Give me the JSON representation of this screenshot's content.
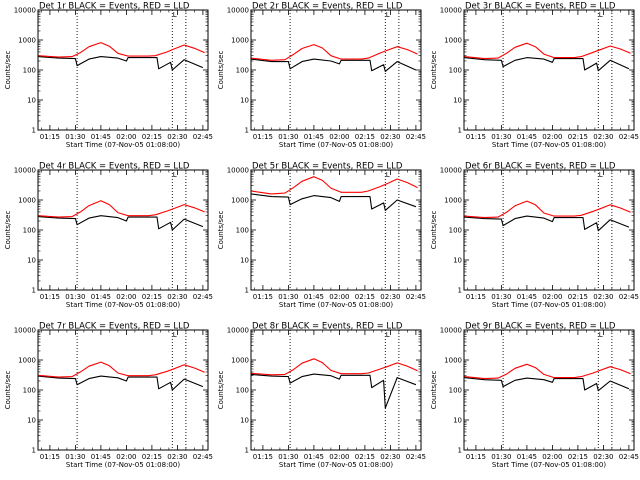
{
  "colors": {
    "events": "#000000",
    "lld": "#ff0000",
    "background": "#ffffff",
    "axes": "#000000"
  },
  "chart_data": [
    {
      "type": "line",
      "title": "Det 1r BLACK = Events, RED = LLD",
      "xlabel": "Start Time (07-Nov-05 01:08:00)",
      "ylabel": "Counts/sec",
      "yscale": "log",
      "ylim": [
        1,
        10000
      ],
      "xlim": [
        "01:08",
        "02:48"
      ],
      "xticklabels": [
        "01:15",
        "01:30",
        "01:45",
        "02:00",
        "02:15",
        "02:30",
        "02:45"
      ],
      "yticklabels": [
        "1",
        "10",
        "100",
        "1000",
        "10000"
      ],
      "vlines": [
        "01:31",
        "02:27",
        "02:35"
      ],
      "annotation": "L",
      "series": [
        {
          "name": "LLD",
          "x": [
            "01:08",
            "01:20",
            "01:28",
            "01:33",
            "01:38",
            "01:45",
            "01:50",
            "01:55",
            "02:01",
            "02:13",
            "02:17",
            "02:24",
            "02:28",
            "02:34",
            "02:40",
            "02:46"
          ],
          "y": [
            300,
            270,
            280,
            380,
            600,
            820,
            620,
            360,
            290,
            290,
            300,
            400,
            500,
            680,
            530,
            380
          ]
        },
        {
          "name": "Events",
          "x": [
            "01:08",
            "01:20",
            "01:30",
            "01:31",
            "01:38",
            "01:45",
            "01:55",
            "02:00",
            "02:01",
            "02:18",
            "02:19",
            "02:26",
            "02:27",
            "02:34",
            "02:45"
          ],
          "y": [
            280,
            250,
            240,
            140,
            230,
            280,
            250,
            200,
            260,
            260,
            110,
            180,
            100,
            220,
            120
          ]
        }
      ]
    },
    {
      "type": "line",
      "title": "Det 2r BLACK = Events, RED = LLD",
      "xlabel": "Start Time (07-Nov-05 01:08:00)",
      "ylabel": "Counts/sec",
      "yscale": "log",
      "ylim": [
        1,
        10000
      ],
      "xlim": [
        "01:08",
        "02:48"
      ],
      "xticklabels": [
        "01:15",
        "01:30",
        "01:45",
        "02:00",
        "02:15",
        "02:30",
        "02:45"
      ],
      "yticklabels": [
        "1",
        "10",
        "100",
        "1000",
        "10000"
      ],
      "vlines": [
        "01:31",
        "02:27",
        "02:35"
      ],
      "annotation": "L",
      "series": [
        {
          "name": "LLD",
          "x": [
            "01:08",
            "01:20",
            "01:28",
            "01:33",
            "01:38",
            "01:45",
            "01:50",
            "01:55",
            "02:01",
            "02:13",
            "02:17",
            "02:24",
            "02:28",
            "02:34",
            "02:40",
            "02:46"
          ],
          "y": [
            250,
            210,
            220,
            330,
            520,
            700,
            540,
            300,
            230,
            230,
            250,
            370,
            450,
            600,
            480,
            340
          ]
        },
        {
          "name": "Events",
          "x": [
            "01:08",
            "01:20",
            "01:30",
            "01:31",
            "01:38",
            "01:45",
            "01:55",
            "02:00",
            "02:01",
            "02:18",
            "02:19",
            "02:26",
            "02:27",
            "02:34",
            "02:45"
          ],
          "y": [
            230,
            190,
            190,
            110,
            190,
            230,
            200,
            160,
            210,
            210,
            95,
            150,
            90,
            190,
            100
          ]
        }
      ]
    },
    {
      "type": "line",
      "title": "Det 3r BLACK = Events, RED = LLD",
      "xlabel": "Start Time (07-Nov-05 01:08:00)",
      "ylabel": "Counts/sec",
      "yscale": "log",
      "ylim": [
        1,
        10000
      ],
      "xlim": [
        "01:08",
        "02:48"
      ],
      "xticklabels": [
        "01:15",
        "01:30",
        "01:45",
        "02:00",
        "02:15",
        "02:30",
        "02:45"
      ],
      "yticklabels": [
        "1",
        "10",
        "100",
        "1000",
        "10000"
      ],
      "vlines": [
        "01:31",
        "02:27",
        "02:35"
      ],
      "annotation": "L",
      "series": [
        {
          "name": "LLD",
          "x": [
            "01:08",
            "01:20",
            "01:28",
            "01:33",
            "01:38",
            "01:45",
            "01:50",
            "01:55",
            "02:01",
            "02:13",
            "02:17",
            "02:24",
            "02:28",
            "02:34",
            "02:40",
            "02:46"
          ],
          "y": [
            280,
            240,
            250,
            360,
            570,
            780,
            600,
            340,
            260,
            260,
            280,
            390,
            470,
            630,
            500,
            360
          ]
        },
        {
          "name": "Events",
          "x": [
            "01:08",
            "01:20",
            "01:30",
            "01:31",
            "01:38",
            "01:45",
            "01:55",
            "02:00",
            "02:01",
            "02:18",
            "02:19",
            "02:26",
            "02:27",
            "02:34",
            "02:45"
          ],
          "y": [
            260,
            220,
            210,
            130,
            210,
            260,
            230,
            180,
            240,
            240,
            100,
            170,
            95,
            210,
            110
          ]
        }
      ]
    },
    {
      "type": "line",
      "title": "Det 4r BLACK = Events, RED = LLD",
      "xlabel": "Start Time (07-Nov-05 01:08:00)",
      "ylabel": "Counts/sec",
      "yscale": "log",
      "ylim": [
        1,
        10000
      ],
      "xlim": [
        "01:08",
        "02:48"
      ],
      "xticklabels": [
        "01:15",
        "01:30",
        "01:45",
        "02:00",
        "02:15",
        "02:30",
        "02:45"
      ],
      "yticklabels": [
        "1",
        "10",
        "100",
        "1000",
        "10000"
      ],
      "vlines": [
        "01:31",
        "02:27",
        "02:35"
      ],
      "annotation": "L",
      "series": [
        {
          "name": "LLD",
          "x": [
            "01:08",
            "01:20",
            "01:28",
            "01:33",
            "01:38",
            "01:45",
            "01:50",
            "01:55",
            "02:01",
            "02:13",
            "02:17",
            "02:24",
            "02:28",
            "02:34",
            "02:40",
            "02:46"
          ],
          "y": [
            300,
            270,
            280,
            400,
            650,
            950,
            700,
            380,
            300,
            300,
            320,
            430,
            520,
            700,
            550,
            400
          ]
        },
        {
          "name": "Events",
          "x": [
            "01:08",
            "01:20",
            "01:30",
            "01:31",
            "01:38",
            "01:45",
            "01:55",
            "02:00",
            "02:01",
            "02:18",
            "02:19",
            "02:26",
            "02:27",
            "02:34",
            "02:45"
          ],
          "y": [
            280,
            250,
            240,
            150,
            250,
            300,
            260,
            200,
            270,
            270,
            110,
            180,
            100,
            230,
            130
          ]
        }
      ]
    },
    {
      "type": "line",
      "title": "Det 5r BLACK = Events, RED = LLD",
      "xlabel": "Start Time (07-Nov-05 01:08:00)",
      "ylabel": "Counts/sec",
      "yscale": "log",
      "ylim": [
        1,
        10000
      ],
      "xlim": [
        "01:08",
        "02:48"
      ],
      "xticklabels": [
        "01:15",
        "01:30",
        "01:45",
        "02:00",
        "02:15",
        "02:30",
        "02:45"
      ],
      "yticklabels": [
        "1",
        "10",
        "100",
        "1000",
        "10000"
      ],
      "vlines": [
        "01:31",
        "02:27",
        "02:35"
      ],
      "annotation": "L",
      "series": [
        {
          "name": "LLD",
          "x": [
            "01:08",
            "01:20",
            "01:28",
            "01:33",
            "01:38",
            "01:45",
            "01:50",
            "01:55",
            "02:01",
            "02:13",
            "02:17",
            "02:24",
            "02:28",
            "02:34",
            "02:40",
            "02:46"
          ],
          "y": [
            2000,
            1600,
            1700,
            2600,
            4200,
            6000,
            4500,
            2500,
            1800,
            1800,
            2000,
            2800,
            3500,
            5000,
            3800,
            2600
          ]
        },
        {
          "name": "Events",
          "x": [
            "01:08",
            "01:20",
            "01:30",
            "01:31",
            "01:38",
            "01:45",
            "01:55",
            "02:00",
            "02:01",
            "02:18",
            "02:19",
            "02:26",
            "02:27",
            "02:34",
            "02:45"
          ],
          "y": [
            1600,
            1300,
            1250,
            700,
            1100,
            1400,
            1200,
            900,
            1300,
            1300,
            500,
            800,
            450,
            1000,
            600
          ]
        }
      ]
    },
    {
      "type": "line",
      "title": "Det 6r BLACK = Events, RED = LLD",
      "xlabel": "Start Time (07-Nov-05 01:08:00)",
      "ylabel": "Counts/sec",
      "yscale": "log",
      "ylim": [
        1,
        10000
      ],
      "xlim": [
        "01:08",
        "02:48"
      ],
      "xticklabels": [
        "01:15",
        "01:30",
        "01:45",
        "02:00",
        "02:15",
        "02:30",
        "02:45"
      ],
      "yticklabels": [
        "1",
        "10",
        "100",
        "1000",
        "10000"
      ],
      "vlines": [
        "01:31",
        "02:27",
        "02:35"
      ],
      "annotation": "L",
      "series": [
        {
          "name": "LLD",
          "x": [
            "01:08",
            "01:20",
            "01:28",
            "01:33",
            "01:38",
            "01:45",
            "01:50",
            "01:55",
            "02:01",
            "02:13",
            "02:17",
            "02:24",
            "02:28",
            "02:34",
            "02:40",
            "02:46"
          ],
          "y": [
            290,
            260,
            270,
            390,
            640,
            920,
            690,
            370,
            290,
            290,
            310,
            420,
            510,
            690,
            540,
            390
          ]
        },
        {
          "name": "Events",
          "x": [
            "01:08",
            "01:20",
            "01:30",
            "01:31",
            "01:38",
            "01:45",
            "01:55",
            "02:00",
            "02:01",
            "02:18",
            "02:19",
            "02:26",
            "02:27",
            "02:34",
            "02:45"
          ],
          "y": [
            270,
            240,
            230,
            140,
            240,
            290,
            250,
            190,
            260,
            260,
            105,
            175,
            95,
            220,
            125
          ]
        }
      ]
    },
    {
      "type": "line",
      "title": "Det 7r BLACK = Events, RED = LLD",
      "xlabel": "Start Time (07-Nov-05 01:08:00)",
      "ylabel": "Counts/sec",
      "yscale": "log",
      "ylim": [
        1,
        10000
      ],
      "xlim": [
        "01:08",
        "02:48"
      ],
      "xticklabels": [
        "01:15",
        "01:30",
        "01:45",
        "02:00",
        "02:15",
        "02:30",
        "02:45"
      ],
      "yticklabels": [
        "1",
        "10",
        "100",
        "1000",
        "10000"
      ],
      "vlines": [
        "01:31",
        "02:27",
        "02:35"
      ],
      "annotation": "L",
      "series": [
        {
          "name": "LLD",
          "x": [
            "01:08",
            "01:20",
            "01:28",
            "01:33",
            "01:38",
            "01:45",
            "01:50",
            "01:55",
            "02:01",
            "02:13",
            "02:17",
            "02:24",
            "02:28",
            "02:34",
            "02:40",
            "02:46"
          ],
          "y": [
            310,
            270,
            280,
            400,
            620,
            850,
            640,
            370,
            300,
            300,
            320,
            420,
            510,
            690,
            540,
            390
          ]
        },
        {
          "name": "Events",
          "x": [
            "01:08",
            "01:20",
            "01:30",
            "01:31",
            "01:38",
            "01:45",
            "01:55",
            "02:00",
            "02:01",
            "02:18",
            "02:19",
            "02:26",
            "02:27",
            "02:34",
            "02:45"
          ],
          "y": [
            290,
            250,
            240,
            150,
            240,
            290,
            255,
            200,
            270,
            270,
            110,
            180,
            100,
            230,
            130
          ]
        }
      ]
    },
    {
      "type": "line",
      "title": "Det 8r BLACK = Events, RED = LLD",
      "xlabel": "Start Time (07-Nov-05 01:08:00)",
      "ylabel": "Counts/sec",
      "yscale": "log",
      "ylim": [
        1,
        10000
      ],
      "xlim": [
        "01:08",
        "02:48"
      ],
      "xticklabels": [
        "01:15",
        "01:30",
        "01:45",
        "02:00",
        "02:15",
        "02:30",
        "02:45"
      ],
      "yticklabels": [
        "1",
        "10",
        "100",
        "1000",
        "10000"
      ],
      "vlines": [
        "01:31",
        "02:27",
        "02:35"
      ],
      "annotation": "L",
      "series": [
        {
          "name": "LLD",
          "x": [
            "01:08",
            "01:20",
            "01:28",
            "01:33",
            "01:38",
            "01:45",
            "01:50",
            "01:55",
            "02:01",
            "02:13",
            "02:17",
            "02:24",
            "02:28",
            "02:34",
            "02:40",
            "02:46"
          ],
          "y": [
            360,
            320,
            330,
            480,
            780,
            1100,
            820,
            450,
            350,
            350,
            370,
            500,
            600,
            800,
            620,
            440
          ]
        },
        {
          "name": "Events",
          "x": [
            "01:08",
            "01:20",
            "01:30",
            "01:31",
            "01:38",
            "01:45",
            "01:55",
            "02:00",
            "02:01",
            "02:18",
            "02:19",
            "02:26",
            "02:27",
            "02:34",
            "02:45"
          ],
          "y": [
            330,
            290,
            280,
            170,
            280,
            340,
            300,
            230,
            310,
            310,
            120,
            210,
            25,
            260,
            150
          ]
        }
      ]
    },
    {
      "type": "line",
      "title": "Det 9r BLACK = Events, RED = LLD",
      "xlabel": "Start Time (07-Nov-05 01:08:00)",
      "ylabel": "Counts/sec",
      "yscale": "log",
      "ylim": [
        1,
        10000
      ],
      "xlim": [
        "01:08",
        "02:48"
      ],
      "xticklabels": [
        "01:15",
        "01:30",
        "01:45",
        "02:00",
        "02:15",
        "02:30",
        "02:45"
      ],
      "yticklabels": [
        "1",
        "10",
        "100",
        "1000",
        "10000"
      ],
      "vlines": [
        "01:31",
        "02:27",
        "02:35"
      ],
      "annotation": "L",
      "series": [
        {
          "name": "LLD",
          "x": [
            "01:08",
            "01:20",
            "01:28",
            "01:33",
            "01:38",
            "01:45",
            "01:50",
            "01:55",
            "02:01",
            "02:13",
            "02:17",
            "02:24",
            "02:28",
            "02:34",
            "02:40",
            "02:46"
          ],
          "y": [
            280,
            240,
            250,
            340,
            530,
            720,
            560,
            330,
            260,
            260,
            280,
            370,
            450,
            600,
            480,
            350
          ]
        },
        {
          "name": "Events",
          "x": [
            "01:08",
            "01:20",
            "01:30",
            "01:31",
            "01:38",
            "01:45",
            "01:55",
            "02:00",
            "02:01",
            "02:18",
            "02:19",
            "02:26",
            "02:27",
            "02:34",
            "02:45"
          ],
          "y": [
            260,
            220,
            210,
            130,
            210,
            250,
            220,
            180,
            240,
            240,
            100,
            165,
            95,
            200,
            110
          ]
        }
      ]
    }
  ]
}
